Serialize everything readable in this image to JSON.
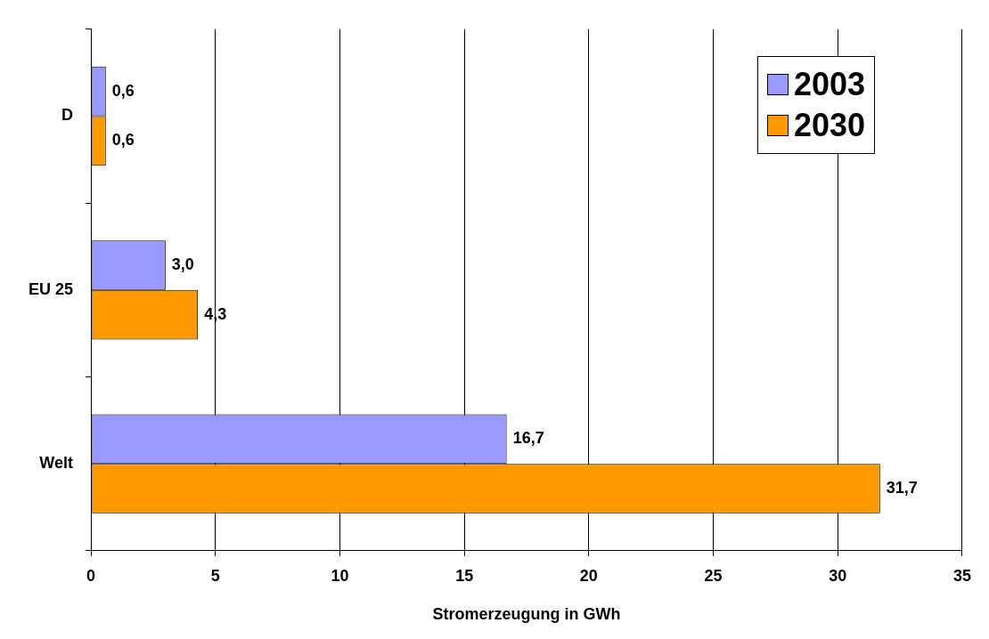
{
  "chart_data": {
    "type": "bar",
    "orientation": "horizontal",
    "xlabel": "Stromerzeugung in GWh",
    "categories": [
      "D",
      "EU 25",
      "Welt"
    ],
    "series": [
      {
        "name": "2003",
        "color": "#9999ff",
        "values": [
          0.6,
          3.0,
          16.7
        ],
        "value_labels": [
          "0,6",
          "3,0",
          "16,7"
        ]
      },
      {
        "name": "2030",
        "color": "#ff9900",
        "values": [
          0.6,
          4.3,
          31.7
        ],
        "value_labels": [
          "0,6",
          "4,3",
          "31,7"
        ]
      }
    ],
    "xlim": [
      0,
      35
    ],
    "xticks": [
      0,
      5,
      10,
      15,
      20,
      25,
      30,
      35
    ],
    "grid": "x",
    "legend": "top right"
  }
}
